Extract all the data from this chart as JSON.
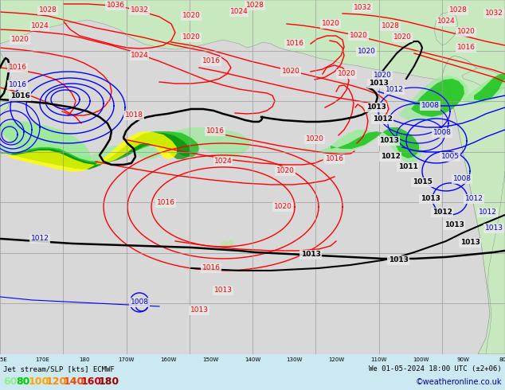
{
  "title_left": "Jet stream/SLP [kts] ECMWF",
  "title_right": "We 01-05-2024 18:00 UTC (±2+06)",
  "watermark": "©weatheronline.co.uk",
  "legend_values": [
    "60",
    "80",
    "100",
    "120",
    "140",
    "160",
    "180"
  ],
  "legend_colors": [
    "#90ee90",
    "#00cc00",
    "#ffa500",
    "#ff8c00",
    "#ff4500",
    "#cc0000",
    "#990000"
  ],
  "bg_color": "#e8e8e8",
  "ocean_color": "#d8d8d8",
  "land_color": "#c8e8c0",
  "land_color2": "#b0d8a0",
  "jet_color_light": "#90ee90",
  "jet_color_mid": "#00bb00",
  "jet_color_dark": "#008800",
  "jet_color_yellow": "#ffff00",
  "jet_color_orange": "#ffa500",
  "isobar_red": "#ff0000",
  "isobar_blue": "#0000ff",
  "isobar_black": "#000000",
  "grid_color": "#999999",
  "bottom_bar_color": "#cce8f0",
  "text_color_red": "#ff0000",
  "text_color_blue": "#0000cc",
  "text_color_black": "#000000",
  "figsize": [
    6.34,
    4.9
  ],
  "dpi": 100
}
